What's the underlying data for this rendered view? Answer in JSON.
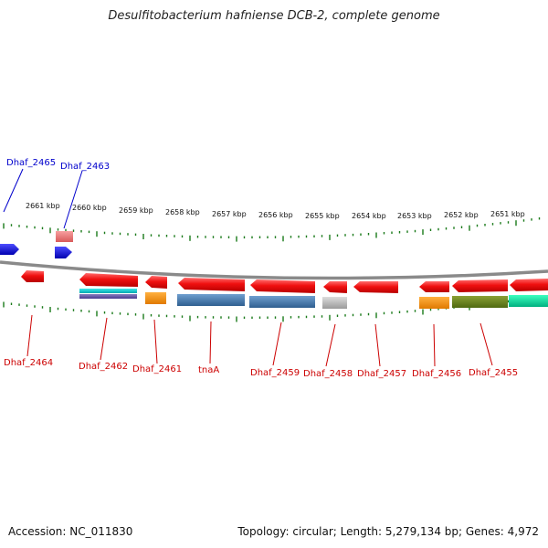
{
  "title": "Desulfitobacterium hafniense DCB-2, complete genome",
  "footer": {
    "accession": "Accession: NC_011830",
    "summary": "Topology: circular; Length: 5,279,134 bp; Genes: 4,972"
  },
  "colors": {
    "backbone": "#888888",
    "tick": "#1a7a1a",
    "label_top": "#0000cc",
    "label_bottom": "#cc0000",
    "gene_red": "#ee1111",
    "gene_pink": "#ee7777",
    "gene_blue": "#1010ee"
  },
  "ruler_labels": [
    "2661 kbp",
    "2660 kbp",
    "2659 kbp",
    "2658 kbp",
    "2657 kbp",
    "2656 kbp",
    "2655 kbp",
    "2654 kbp",
    "2653 kbp",
    "2652 kbp",
    "2651 kbp"
  ],
  "gene_labels_top": [
    "Dhaf_2465",
    "Dhaf_2463"
  ],
  "gene_labels_bottom": [
    "Dhaf_2464",
    "Dhaf_2462",
    "Dhaf_2461",
    "tnaA",
    "Dhaf_2459",
    "Dhaf_2458",
    "Dhaf_2457",
    "Dhaf_2456",
    "Dhaf_2455"
  ]
}
